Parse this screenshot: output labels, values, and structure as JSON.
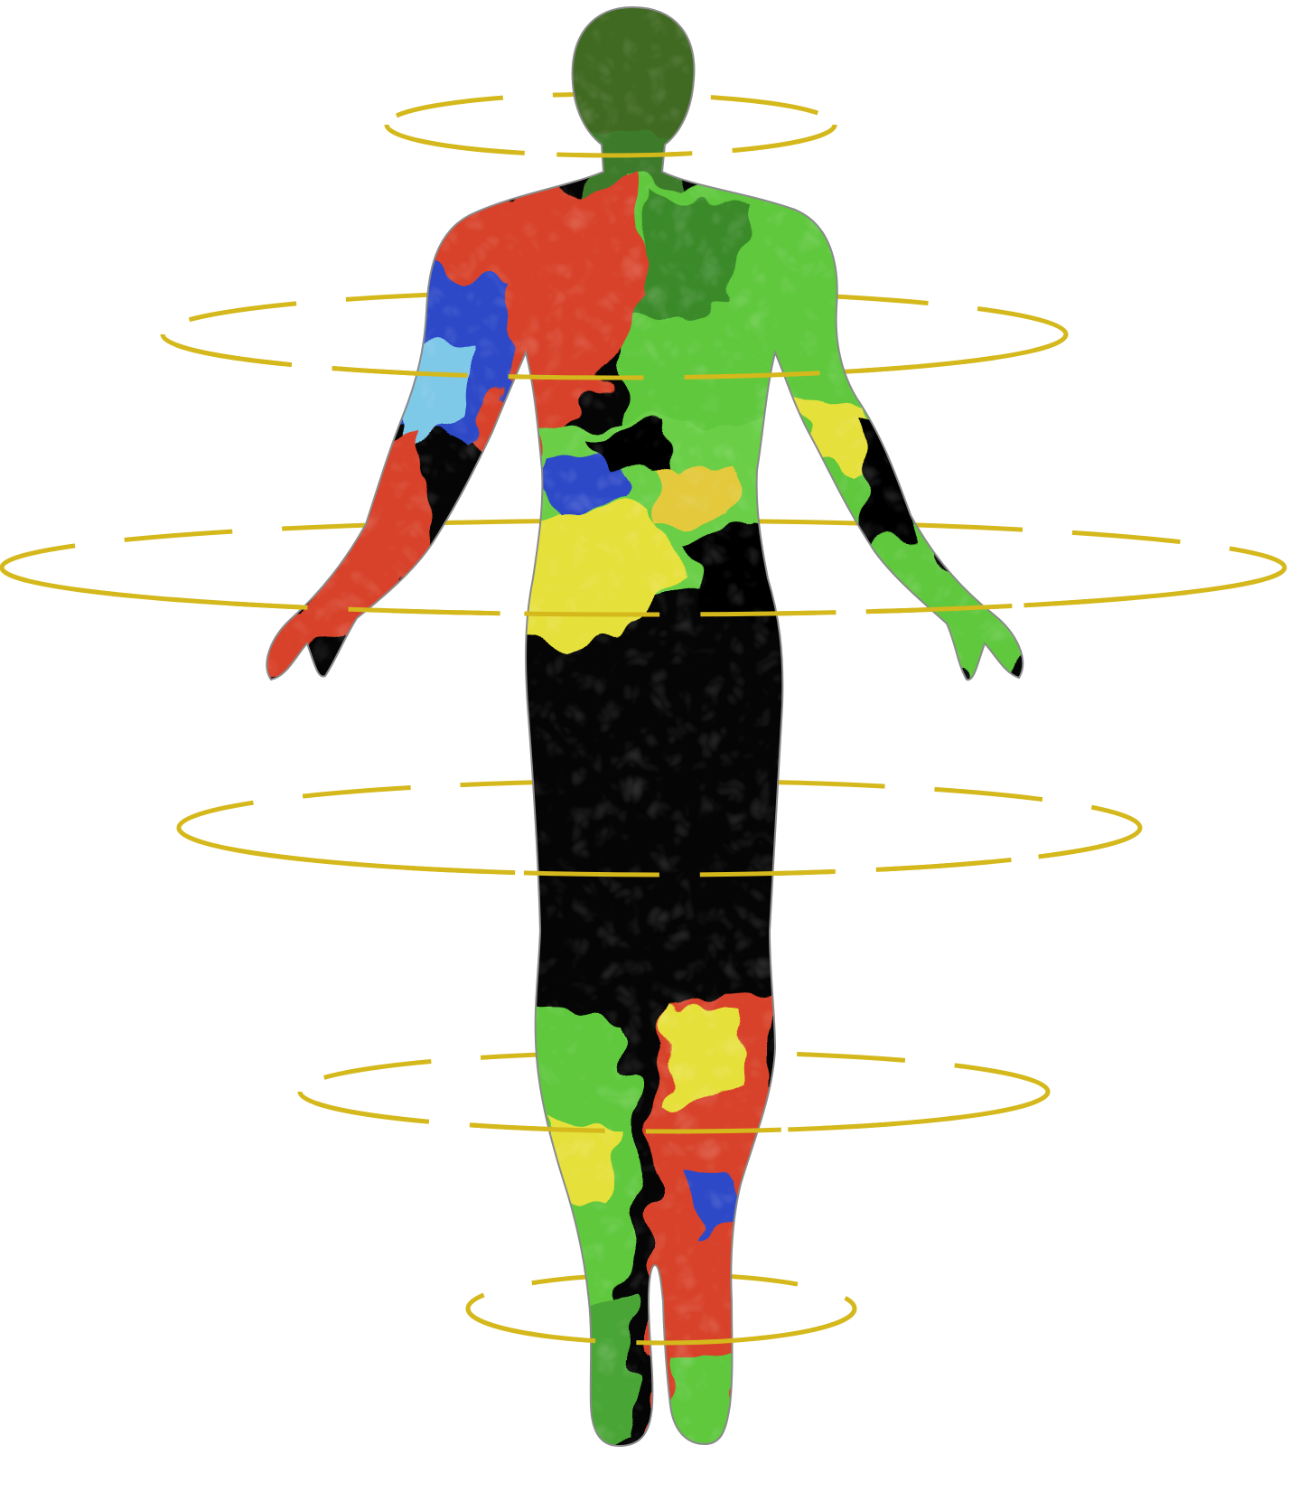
{
  "figure": {
    "subject": "body-silhouette",
    "ring_count": 6
  },
  "colors": {
    "background": "#ffffff",
    "ring": "#d4b81c",
    "outline": "#8a8a8a",
    "black": "#050505",
    "red": "#d8432c",
    "green": "#5ec83e",
    "dark_green": "#3f6b24",
    "yellow": "#e6e03a",
    "blue": "#2f48c8",
    "light_blue": "#7ec8e8"
  }
}
